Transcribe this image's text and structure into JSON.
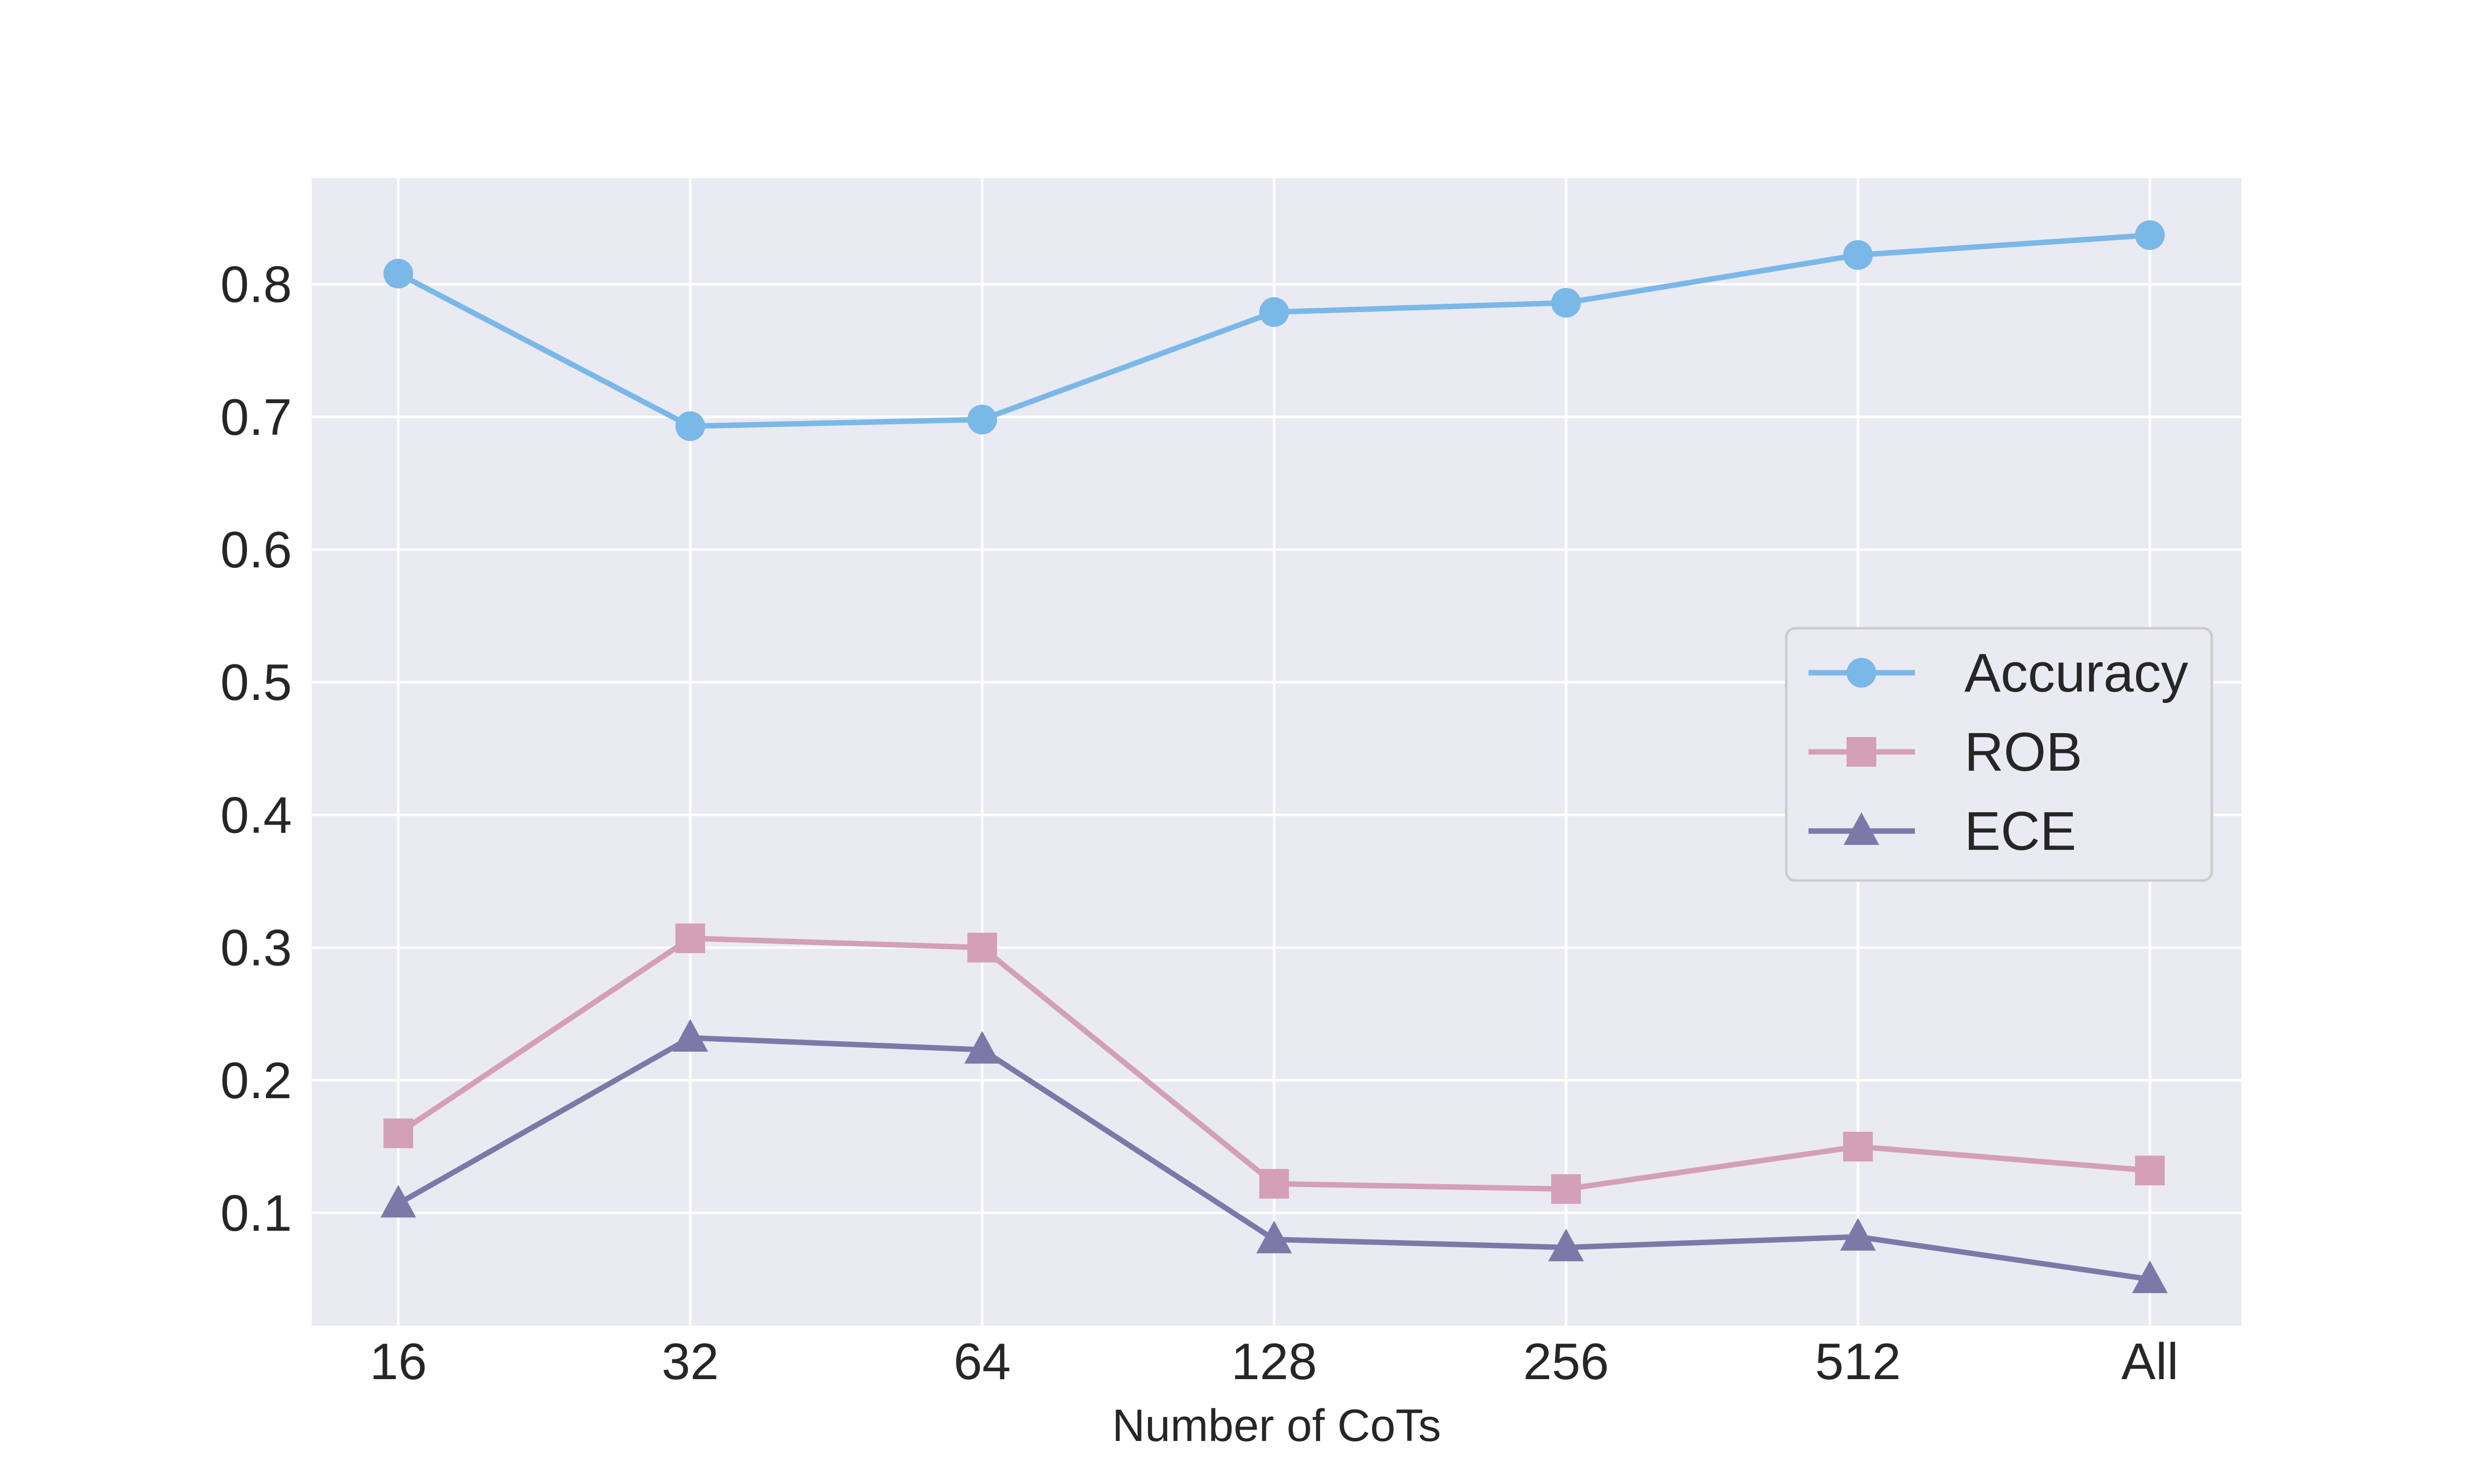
{
  "chart_data": {
    "type": "line",
    "title": "",
    "xlabel": "Number of CoTs",
    "ylabel": "",
    "categories": [
      "16",
      "32",
      "64",
      "128",
      "256",
      "512",
      "All"
    ],
    "yticks": [
      "0.1",
      "0.2",
      "0.3",
      "0.4",
      "0.5",
      "0.6",
      "0.7",
      "0.8"
    ],
    "ylim": [
      0.015,
      0.88
    ],
    "grid": true,
    "legend_position": "center-right",
    "series": [
      {
        "name": "Accuracy",
        "marker": "circle",
        "color": "#7ab8e8",
        "values": [
          0.808,
          0.693,
          0.698,
          0.779,
          0.786,
          0.822,
          0.837
        ]
      },
      {
        "name": "ROB",
        "marker": "square",
        "color": "#d4a0b7",
        "values": [
          0.16,
          0.307,
          0.3,
          0.122,
          0.118,
          0.15,
          0.132
        ]
      },
      {
        "name": "ECE",
        "marker": "triangle",
        "color": "#7e78a8",
        "values": [
          0.107,
          0.232,
          0.223,
          0.08,
          0.074,
          0.082,
          0.05
        ]
      }
    ]
  },
  "colors": {
    "plot_background": "#eaeaf2",
    "grid": "#ffffff",
    "text": "#262626"
  }
}
